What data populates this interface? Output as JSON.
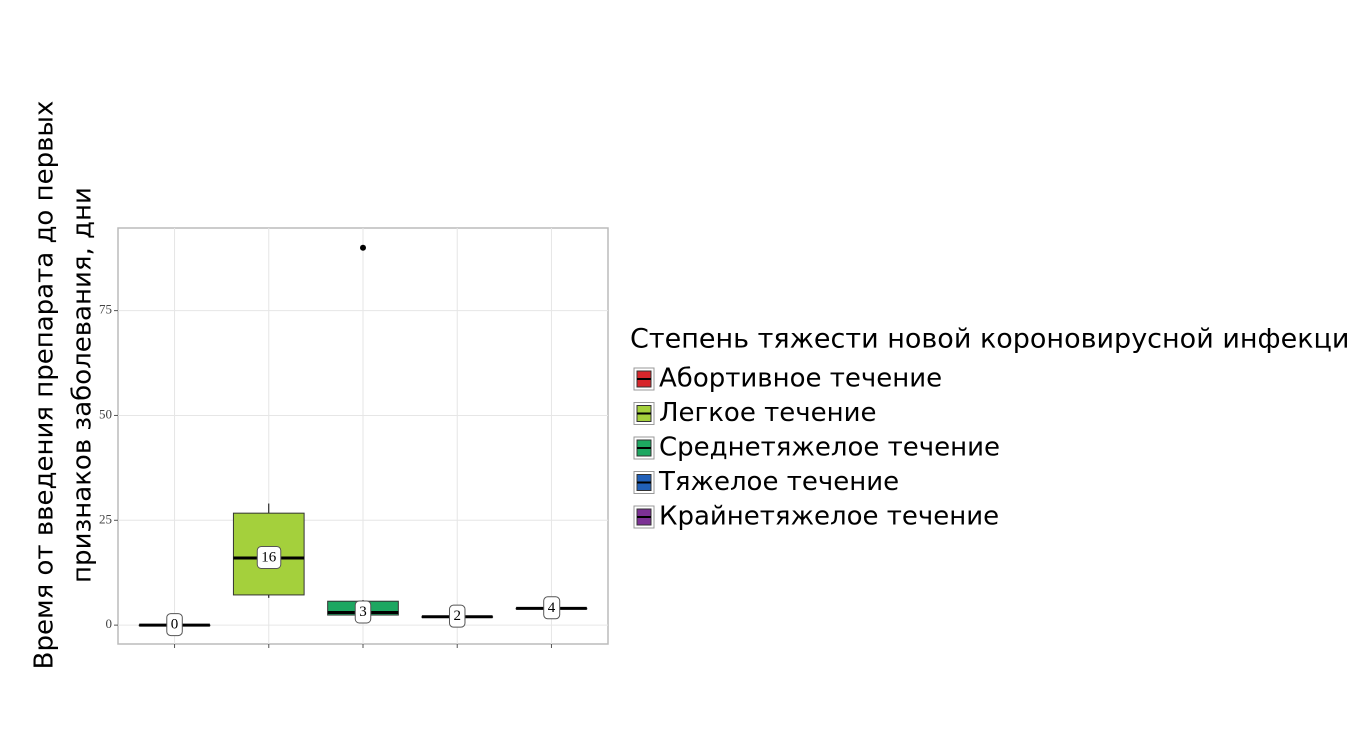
{
  "chart_data": {
    "type": "box",
    "ylabel": [
      "Время от введения препарата до первых",
      "признаков заболевания, дни"
    ],
    "legend_title": "Степень тяжести новой короновирусной инфекции",
    "ylim": [
      -4.5,
      94.7
    ],
    "yticks": [
      0,
      25,
      50,
      75
    ],
    "grid": true,
    "legend": "right",
    "series": [
      {
        "name": "Абортивное течение",
        "color": "#d7262b",
        "whisker_low": 0,
        "q1": 0,
        "median": 0,
        "q3": 0,
        "whisker_high": 0
      },
      {
        "name": "Легкое течение",
        "color": "#a4d03c",
        "whisker_low": 6.5,
        "q1": 7.2,
        "median": 16,
        "q3": 26.7,
        "whisker_high": 29
      },
      {
        "name": "Среднетяжелое течение",
        "color": "#1da761",
        "whisker_low": 2,
        "q1": 2.4,
        "median": 3,
        "q3": 5.7,
        "whisker_high": 6,
        "outliers": [
          90
        ]
      },
      {
        "name": "Тяжелое течение",
        "color": "#2160b8",
        "whisker_low": 2,
        "q1": 2,
        "median": 2,
        "q3": 2,
        "whisker_high": 2
      },
      {
        "name": "Крайнетяжелое течение",
        "color": "#7c3195",
        "whisker_low": 4,
        "q1": 4,
        "median": 4,
        "q3": 4,
        "whisker_high": 4
      }
    ]
  }
}
